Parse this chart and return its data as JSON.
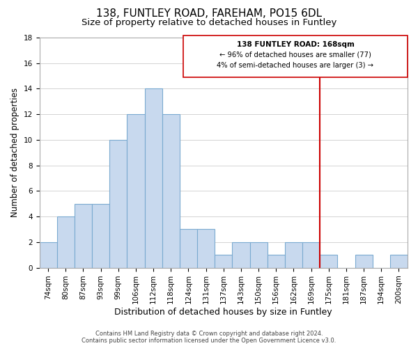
{
  "title": "138, FUNTLEY ROAD, FAREHAM, PO15 6DL",
  "subtitle": "Size of property relative to detached houses in Funtley",
  "xlabel": "Distribution of detached houses by size in Funtley",
  "ylabel": "Number of detached properties",
  "bin_labels": [
    "74sqm",
    "80sqm",
    "87sqm",
    "93sqm",
    "99sqm",
    "106sqm",
    "112sqm",
    "118sqm",
    "124sqm",
    "131sqm",
    "137sqm",
    "143sqm",
    "150sqm",
    "156sqm",
    "162sqm",
    "169sqm",
    "175sqm",
    "181sqm",
    "187sqm",
    "194sqm",
    "200sqm"
  ],
  "bar_values": [
    2,
    4,
    5,
    5,
    10,
    12,
    14,
    12,
    3,
    3,
    1,
    2,
    2,
    1,
    2,
    2,
    1,
    0,
    1,
    0,
    1
  ],
  "bar_color": "#c8d9ee",
  "bar_edge_color": "#7aaad0",
  "grid_color": "#cccccc",
  "vline_color": "#cc0000",
  "ylim": [
    0,
    18
  ],
  "yticks": [
    0,
    2,
    4,
    6,
    8,
    10,
    12,
    14,
    16,
    18
  ],
  "annotation_title": "138 FUNTLEY ROAD: 168sqm",
  "annotation_line1": "← 96% of detached houses are smaller (77)",
  "annotation_line2": "4% of semi-detached houses are larger (3) →",
  "footer1": "Contains HM Land Registry data © Crown copyright and database right 2024.",
  "footer2": "Contains public sector information licensed under the Open Government Licence v3.0.",
  "title_fontsize": 11,
  "subtitle_fontsize": 9.5,
  "tick_fontsize": 7.5,
  "ylabel_fontsize": 8.5,
  "xlabel_fontsize": 9,
  "annotation_fontsize": 7.5,
  "footer_fontsize": 6
}
